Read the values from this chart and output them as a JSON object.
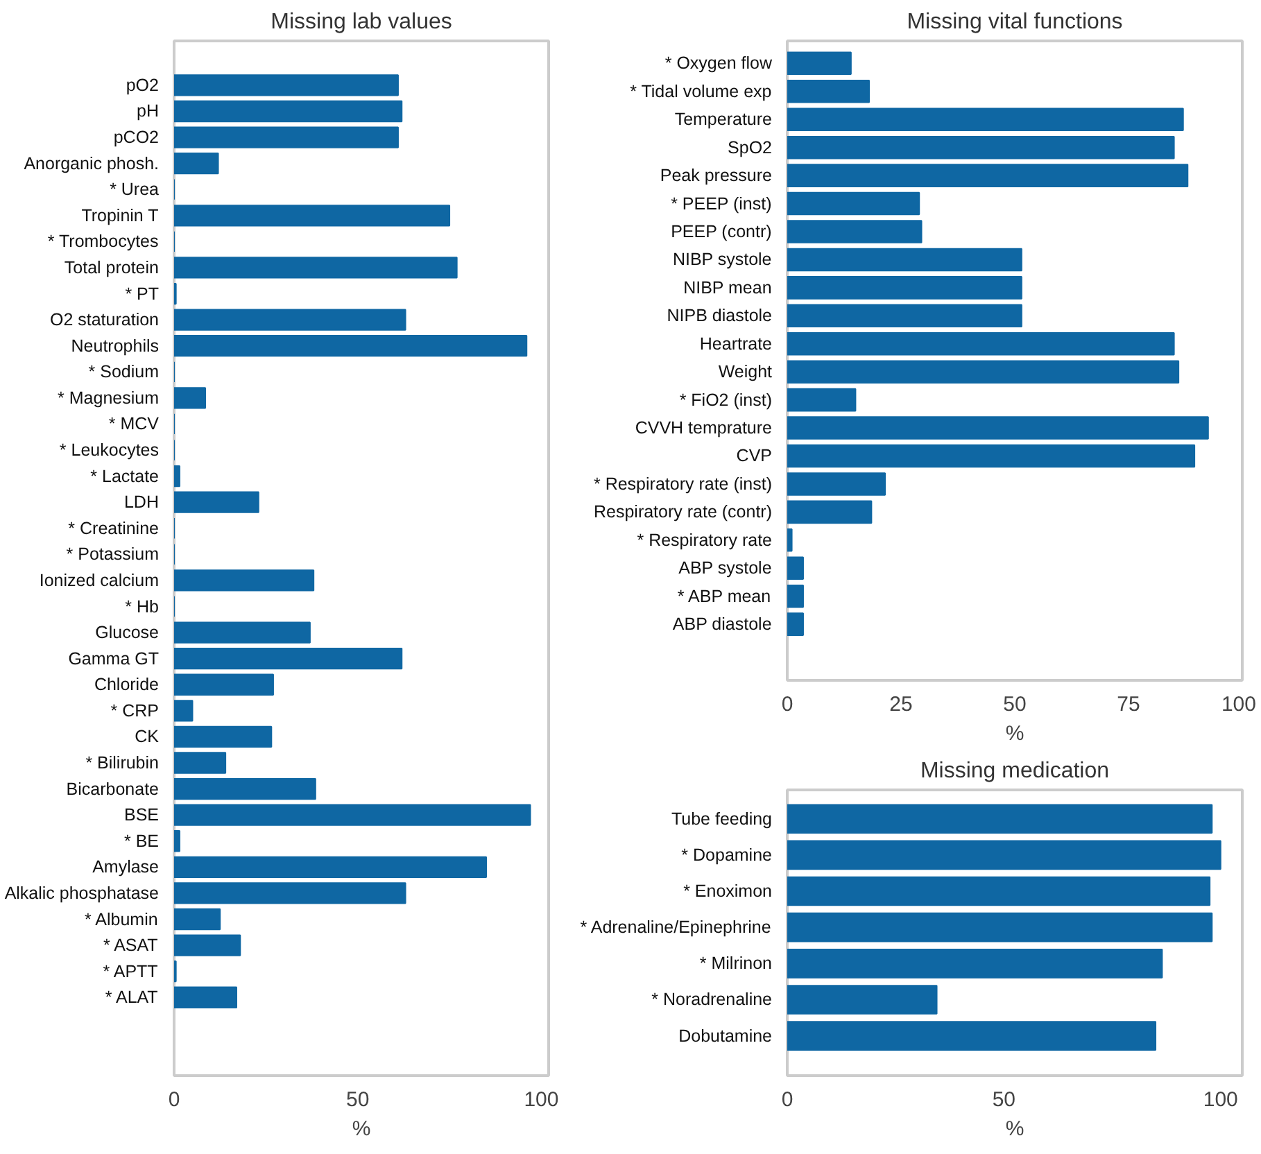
{
  "chart_data": [
    {
      "type": "bar",
      "orientation": "horizontal",
      "title": "Missing lab values",
      "xlabel": "%",
      "xlim": [
        0,
        102
      ],
      "xticks": [
        0,
        50,
        100
      ],
      "grid": false,
      "color": "#0f67a3",
      "categories": [
        "pO2",
        "pH",
        "pCO2",
        "Anorganic phosh.",
        "* Urea",
        "Tropinin T",
        "* Trombocytes",
        "Total protein",
        "* PT",
        "O2 staturation",
        "Neutrophils",
        "* Sodium",
        "* Magnesium",
        "* MCV",
        "* Leukocytes",
        "* Lactate",
        "LDH",
        "* Creatinine",
        "* Potassium",
        "Ionized calcium",
        "* Hb",
        "Glucose",
        "Gamma GT",
        "Chloride",
        "* CRP",
        "CK",
        "* Bilirubin",
        "Bicarbonate",
        "BSE",
        "* BE",
        "Amylase",
        "Alkalic phosphatase",
        "* Albumin",
        "* ASAT",
        "* APTT",
        "* ALAT"
      ],
      "values": [
        61,
        62,
        61,
        12,
        0,
        75,
        0,
        77,
        0.5,
        63,
        96,
        0,
        8.5,
        0,
        0,
        1.5,
        23,
        0,
        0,
        38,
        0,
        37,
        62,
        27,
        5,
        26.5,
        14,
        38.5,
        97,
        1.5,
        85,
        63,
        12.5,
        18,
        0.5,
        17
      ]
    },
    {
      "type": "bar",
      "orientation": "horizontal",
      "title": "Missing vital functions",
      "xlabel": "%",
      "xlim": [
        0,
        100
      ],
      "xticks": [
        0,
        25,
        50,
        75,
        100
      ],
      "grid": false,
      "color": "#0f67a3",
      "categories": [
        "* Oxygen flow",
        "* Tidal volume exp",
        "Temperature",
        "SpO2",
        "Peak pressure",
        "* PEEP (inst)",
        "PEEP (contr)",
        "NIBP systole",
        "NIBP mean",
        "NIPB diastole",
        "Heartrate",
        "Weight",
        "* FiO2 (inst)",
        "CVVH temprature",
        "CVP",
        "* Respiratory rate (inst)",
        "Respiratory rate (contr)",
        "* Respiratory rate",
        "ABP systole",
        "* ABP mean",
        "ABP diastole"
      ],
      "values": [
        14,
        18,
        87,
        85,
        88,
        29,
        29.5,
        51.5,
        51.5,
        51.5,
        85,
        86,
        15,
        92.5,
        89.5,
        21.5,
        18.5,
        1,
        3.5,
        3.5,
        3.5
      ]
    },
    {
      "type": "bar",
      "orientation": "horizontal",
      "title": "Missing medication",
      "xlabel": "%",
      "xlim": [
        0,
        105
      ],
      "xticks": [
        0,
        50,
        100
      ],
      "grid": false,
      "color": "#0f67a3",
      "categories": [
        "Tube feeding",
        "* Dopamine",
        "* Enoximon",
        "* Adrenaline/Epinephrine",
        "* Milrinon",
        "* Noradrenaline",
        "Dobutamine"
      ],
      "values": [
        98,
        100,
        97.5,
        98,
        86.5,
        34.5,
        85
      ]
    }
  ]
}
